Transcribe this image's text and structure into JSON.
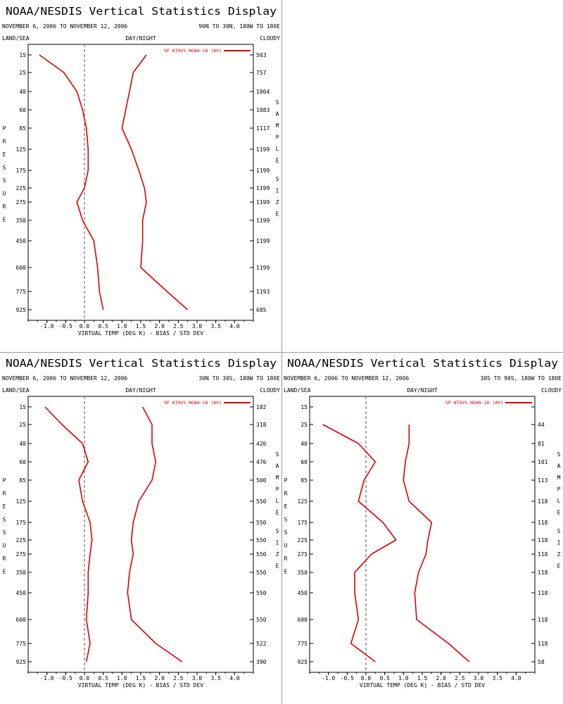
{
  "page": {
    "panel_title": "NOAA/NESDIS Vertical Statistics Display",
    "date_range": "NOVEMBER 6, 2006 TO NOVEMBER 12, 2006",
    "land_sea": "LAND/SEA",
    "day_night": "DAY/NIGHT",
    "cloudy": "CLOUDY",
    "left_axis_label": "PRESSURE",
    "right_axis_label": "SAMPLE SIZE",
    "xlabel": "VIRTUAL TEMP (DEG K) - BIAS / STD DEV",
    "legend": "SP ATOVS NOAA-18 (A®)",
    "series_color": "#dd0000",
    "zero_line_style": "dashed"
  },
  "chart_data": [
    {
      "type": "line",
      "region": "90N TO 30N, 180W TO 180E",
      "pressure_levels": [
        15,
        25,
        40,
        60,
        85,
        125,
        175,
        225,
        275,
        350,
        450,
        600,
        775,
        925
      ],
      "sample_size": [
        503,
        757,
        1004,
        1083,
        1117,
        1199,
        1199,
        1199,
        1199,
        1199,
        1199,
        1199,
        1193,
        685
      ],
      "xlim": [
        -1.5,
        4.5
      ],
      "x_ticks": [
        "-1.0",
        "-0.5",
        "0.0",
        "0.5",
        "1.0",
        "1.5",
        "2.0",
        "2.5",
        "3.0",
        "3.5",
        "4.0"
      ],
      "series": [
        {
          "name": "bias",
          "values": [
            -1.2,
            -0.55,
            -0.2,
            -0.05,
            0.05,
            0.1,
            0.1,
            0.0,
            -0.2,
            -0.05,
            0.25,
            0.35,
            0.4,
            0.5
          ]
        },
        {
          "name": "std_dev",
          "values": [
            1.65,
            1.3,
            1.2,
            1.1,
            1.0,
            1.25,
            1.45,
            1.6,
            1.65,
            1.55,
            1.55,
            1.5,
            2.2,
            2.75
          ]
        }
      ]
    },
    {
      "type": "line",
      "region": "30N TO 30S, 180W TO 180E",
      "pressure_levels": [
        15,
        25,
        40,
        60,
        85,
        125,
        175,
        225,
        275,
        350,
        450,
        600,
        775,
        925
      ],
      "sample_size": [
        182,
        318,
        426,
        476,
        500,
        550,
        550,
        550,
        550,
        550,
        550,
        550,
        522,
        390
      ],
      "xlim": [
        -1.5,
        4.5
      ],
      "x_ticks": [
        "-1.0",
        "-0.5",
        "0.0",
        "0.5",
        "1.0",
        "1.5",
        "2.0",
        "2.5",
        "3.0",
        "3.5",
        "4.0"
      ],
      "series": [
        {
          "name": "bias",
          "values": [
            -1.05,
            -0.6,
            -0.05,
            0.1,
            -0.15,
            -0.05,
            0.15,
            0.2,
            0.15,
            0.1,
            0.1,
            0.05,
            0.15,
            0.05
          ]
        },
        {
          "name": "std_dev",
          "values": [
            1.55,
            1.8,
            1.8,
            1.9,
            1.8,
            1.45,
            1.3,
            1.25,
            1.3,
            1.2,
            1.15,
            1.25,
            1.9,
            2.6
          ]
        }
      ]
    },
    {
      "type": "line",
      "region": "30S TO 90S, 180W TO 180E",
      "pressure_levels": [
        15,
        25,
        40,
        60,
        85,
        125,
        175,
        225,
        275,
        350,
        450,
        600,
        775,
        925
      ],
      "sample_size": [
        null,
        44,
        81,
        101,
        113,
        118,
        118,
        118,
        118,
        118,
        118,
        118,
        118,
        58
      ],
      "xlim": [
        -1.5,
        4.5
      ],
      "x_ticks": [
        "-1.0",
        "-0.5",
        "0.0",
        "0.5",
        "1.0",
        "1.5",
        "2.0",
        "2.5",
        "3.0",
        "3.5",
        "4.0"
      ],
      "series": [
        {
          "name": "bias",
          "values": [
            null,
            -1.15,
            -0.2,
            0.25,
            -0.05,
            -0.2,
            0.45,
            0.8,
            0.15,
            -0.3,
            -0.3,
            -0.2,
            -0.4,
            0.25
          ]
        },
        {
          "name": "std_dev",
          "values": [
            null,
            1.15,
            1.15,
            1.05,
            1.0,
            1.15,
            1.75,
            1.65,
            1.6,
            1.4,
            1.3,
            1.35,
            2.2,
            2.75
          ]
        }
      ]
    }
  ]
}
